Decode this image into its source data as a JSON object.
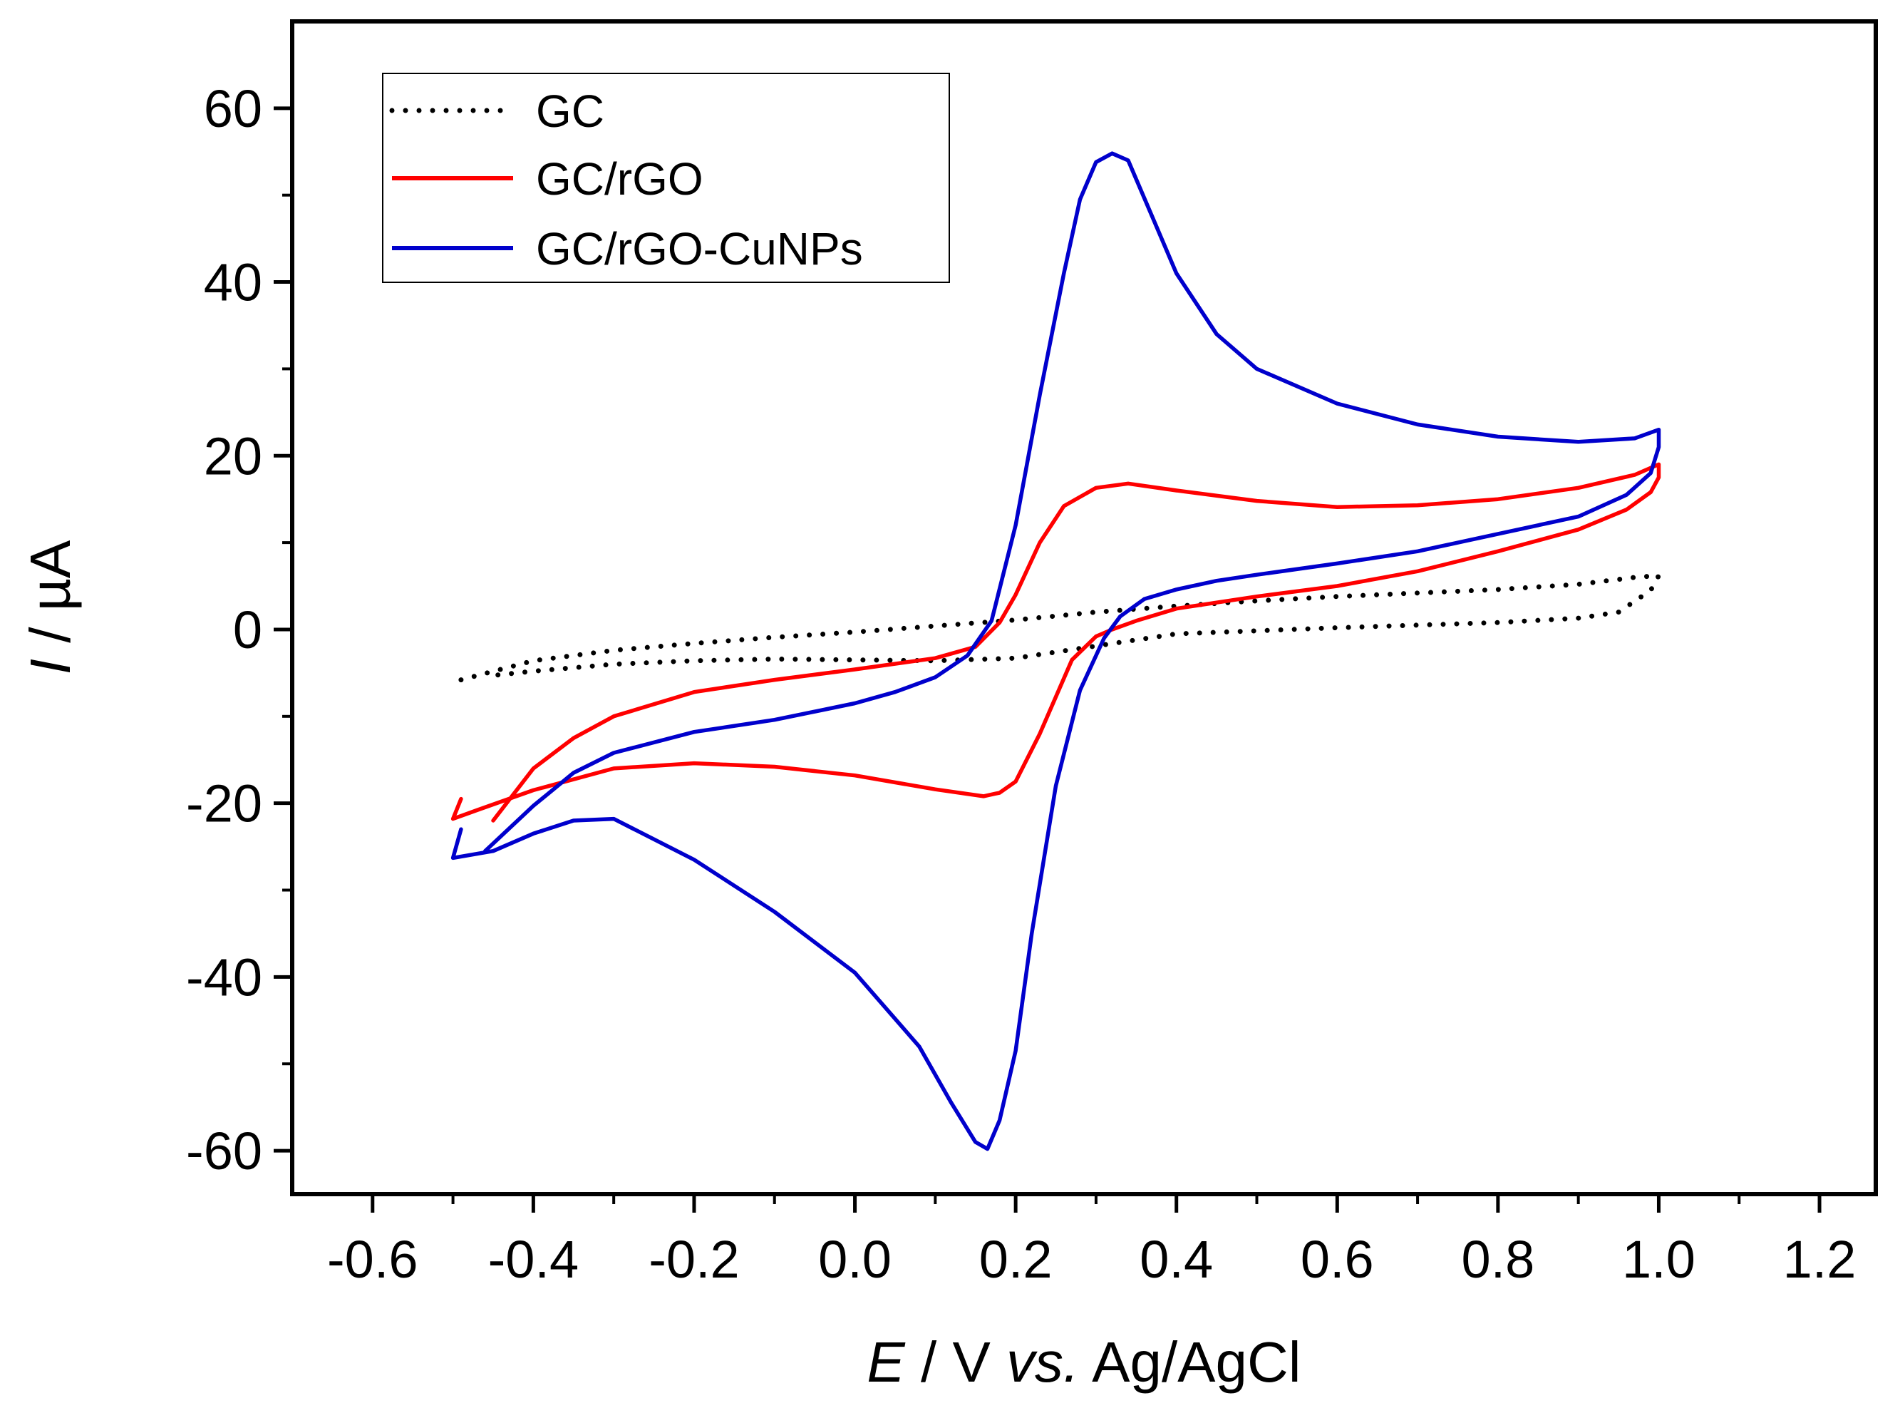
{
  "chart_data": {
    "type": "line",
    "title": "",
    "xlabel": {
      "var": "E",
      "unit": " / V ",
      "ref_italic": "vs.",
      "ref": " Ag/AgCl"
    },
    "ylabel": {
      "var": "I",
      "unit": " / µA"
    },
    "xlim": [
      -0.7,
      1.27
    ],
    "ylim": [
      -65,
      70
    ],
    "xticks": [
      "-0.6",
      "-0.4",
      "-0.2",
      "0.0",
      "0.2",
      "0.4",
      "0.6",
      "0.8",
      "1.0",
      "1.2"
    ],
    "xtick_values": [
      -0.6,
      -0.4,
      -0.2,
      0.0,
      0.2,
      0.4,
      0.6,
      0.8,
      1.0,
      1.2
    ],
    "yticks": [
      "-60",
      "-40",
      "-20",
      "0",
      "20",
      "40",
      "60"
    ],
    "ytick_values": [
      -60,
      -40,
      -20,
      0,
      20,
      40,
      60
    ],
    "legend_position": "top-left",
    "series": [
      {
        "name": "GC",
        "color": "#000000",
        "style": "dotted",
        "points": [
          [
            -0.49,
            -5.8
          ],
          [
            -0.4,
            -3.6
          ],
          [
            -0.3,
            -2.4
          ],
          [
            -0.2,
            -1.6
          ],
          [
            -0.1,
            -0.9
          ],
          [
            0.0,
            -0.3
          ],
          [
            0.1,
            0.4
          ],
          [
            0.2,
            1.1
          ],
          [
            0.3,
            2.0
          ],
          [
            0.4,
            2.7
          ],
          [
            0.5,
            3.3
          ],
          [
            0.6,
            3.8
          ],
          [
            0.7,
            4.2
          ],
          [
            0.8,
            4.6
          ],
          [
            0.9,
            5.2
          ],
          [
            0.97,
            6.0
          ],
          [
            1.0,
            6.2
          ],
          [
            0.99,
            4.5
          ],
          [
            0.95,
            2.0
          ],
          [
            0.9,
            1.3
          ],
          [
            0.8,
            0.8
          ],
          [
            0.6,
            0.2
          ],
          [
            0.4,
            -0.5
          ],
          [
            0.2,
            -3.3
          ],
          [
            0.1,
            -3.6
          ],
          [
            0.0,
            -3.5
          ],
          [
            -0.1,
            -3.4
          ],
          [
            -0.2,
            -3.6
          ],
          [
            -0.3,
            -4.0
          ],
          [
            -0.4,
            -4.8
          ],
          [
            -0.45,
            -5.3
          ]
        ]
      },
      {
        "name": "GC/rGO",
        "color": "#ff0000",
        "style": "solid",
        "points": [
          [
            -0.45,
            -22
          ],
          [
            -0.4,
            -16
          ],
          [
            -0.35,
            -12.5
          ],
          [
            -0.3,
            -10
          ],
          [
            -0.2,
            -7.2
          ],
          [
            -0.1,
            -5.8
          ],
          [
            0.0,
            -4.6
          ],
          [
            0.1,
            -3.3
          ],
          [
            0.15,
            -2.0
          ],
          [
            0.18,
            0.8
          ],
          [
            0.2,
            4.0
          ],
          [
            0.23,
            10.0
          ],
          [
            0.26,
            14.2
          ],
          [
            0.3,
            16.3
          ],
          [
            0.34,
            16.8
          ],
          [
            0.4,
            16.0
          ],
          [
            0.5,
            14.8
          ],
          [
            0.6,
            14.1
          ],
          [
            0.7,
            14.3
          ],
          [
            0.8,
            15.0
          ],
          [
            0.9,
            16.3
          ],
          [
            0.97,
            17.8
          ],
          [
            1.0,
            19.0
          ],
          [
            1.0,
            17.5
          ],
          [
            0.99,
            15.8
          ],
          [
            0.96,
            13.8
          ],
          [
            0.9,
            11.5
          ],
          [
            0.8,
            9.0
          ],
          [
            0.7,
            6.7
          ],
          [
            0.6,
            5.0
          ],
          [
            0.5,
            3.8
          ],
          [
            0.4,
            2.4
          ],
          [
            0.35,
            1.0
          ],
          [
            0.32,
            0.0
          ],
          [
            0.3,
            -0.8
          ],
          [
            0.27,
            -3.5
          ],
          [
            0.23,
            -12.0
          ],
          [
            0.2,
            -17.5
          ],
          [
            0.18,
            -18.8
          ],
          [
            0.16,
            -19.2
          ],
          [
            0.1,
            -18.4
          ],
          [
            0.0,
            -16.8
          ],
          [
            -0.1,
            -15.8
          ],
          [
            -0.2,
            -15.4
          ],
          [
            -0.3,
            -16.0
          ],
          [
            -0.4,
            -18.5
          ],
          [
            -0.47,
            -20.8
          ],
          [
            -0.5,
            -21.8
          ],
          [
            -0.49,
            -19.5
          ]
        ]
      },
      {
        "name": "GC/rGO-CuNPs",
        "color": "#0000cc",
        "style": "solid",
        "points": [
          [
            -0.46,
            -25.5
          ],
          [
            -0.4,
            -20.3
          ],
          [
            -0.35,
            -16.5
          ],
          [
            -0.3,
            -14.2
          ],
          [
            -0.2,
            -11.8
          ],
          [
            -0.1,
            -10.4
          ],
          [
            0.0,
            -8.5
          ],
          [
            0.05,
            -7.2
          ],
          [
            0.1,
            -5.5
          ],
          [
            0.14,
            -3.0
          ],
          [
            0.17,
            1.0
          ],
          [
            0.2,
            12.0
          ],
          [
            0.23,
            27.0
          ],
          [
            0.26,
            41.0
          ],
          [
            0.28,
            49.5
          ],
          [
            0.3,
            53.8
          ],
          [
            0.32,
            54.8
          ],
          [
            0.34,
            54.0
          ],
          [
            0.37,
            47.5
          ],
          [
            0.4,
            41.0
          ],
          [
            0.45,
            34.0
          ],
          [
            0.5,
            30.0
          ],
          [
            0.6,
            26.0
          ],
          [
            0.7,
            23.6
          ],
          [
            0.8,
            22.2
          ],
          [
            0.9,
            21.6
          ],
          [
            0.97,
            22.0
          ],
          [
            1.0,
            23.0
          ],
          [
            1.0,
            21.0
          ],
          [
            0.99,
            18.0
          ],
          [
            0.96,
            15.5
          ],
          [
            0.9,
            13.0
          ],
          [
            0.8,
            11.0
          ],
          [
            0.7,
            9.0
          ],
          [
            0.6,
            7.6
          ],
          [
            0.5,
            6.3
          ],
          [
            0.45,
            5.6
          ],
          [
            0.4,
            4.6
          ],
          [
            0.36,
            3.5
          ],
          [
            0.33,
            1.5
          ],
          [
            0.31,
            -1.0
          ],
          [
            0.28,
            -7.0
          ],
          [
            0.25,
            -18.0
          ],
          [
            0.22,
            -35.0
          ],
          [
            0.2,
            -48.5
          ],
          [
            0.18,
            -56.5
          ],
          [
            0.165,
            -59.8
          ],
          [
            0.15,
            -59.0
          ],
          [
            0.12,
            -54.5
          ],
          [
            0.08,
            -48.0
          ],
          [
            0.0,
            -39.5
          ],
          [
            -0.1,
            -32.5
          ],
          [
            -0.2,
            -26.5
          ],
          [
            -0.3,
            -21.8
          ],
          [
            -0.35,
            -22.0
          ],
          [
            -0.4,
            -23.5
          ],
          [
            -0.45,
            -25.5
          ],
          [
            -0.5,
            -26.3
          ],
          [
            -0.49,
            -23.0
          ]
        ]
      }
    ]
  }
}
